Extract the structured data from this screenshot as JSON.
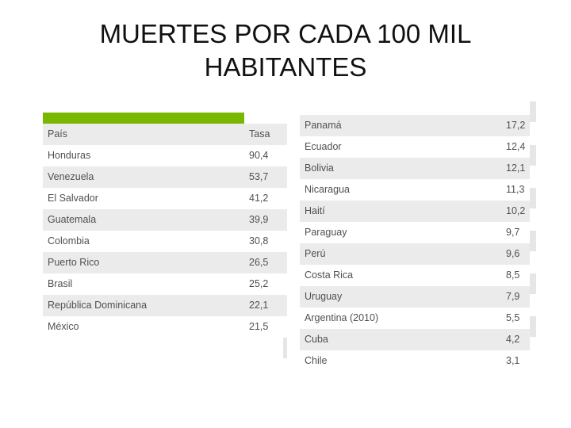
{
  "title": {
    "line1": "MUERTES POR CADA 100 MIL",
    "line2": "HABITANTES"
  },
  "left_table": {
    "header": {
      "country": "País",
      "rate": "Tasa"
    },
    "rows": [
      {
        "country": "Honduras",
        "rate": "90,4"
      },
      {
        "country": "Venezuela",
        "rate": "53,7"
      },
      {
        "country": "El Salvador",
        "rate": "41,2"
      },
      {
        "country": "Guatemala",
        "rate": "39,9"
      },
      {
        "country": "Colombia",
        "rate": "30,8"
      },
      {
        "country": "Puerto Rico",
        "rate": "26,5"
      },
      {
        "country": "Brasil",
        "rate": "25,2"
      },
      {
        "country": "República Dominicana",
        "rate": "22,1"
      },
      {
        "country": "México",
        "rate": "21,5"
      }
    ]
  },
  "right_table": {
    "rows": [
      {
        "country": "Panamá",
        "rate": "17,2"
      },
      {
        "country": "Ecuador",
        "rate": "12,4"
      },
      {
        "country": "Bolivia",
        "rate": "12,1"
      },
      {
        "country": "Nicaragua",
        "rate": "11,3"
      },
      {
        "country": "Haití",
        "rate": "10,2"
      },
      {
        "country": "Paraguay",
        "rate": "9,7"
      },
      {
        "country": "Perú",
        "rate": "9,6"
      },
      {
        "country": "Costa Rica",
        "rate": "8,5"
      },
      {
        "country": "Uruguay",
        "rate": "7,9"
      },
      {
        "country": "Argentina (2010)",
        "rate": "5,5"
      },
      {
        "country": "Cuba",
        "rate": "4,2"
      },
      {
        "country": "Chile",
        "rate": "3,1"
      }
    ]
  },
  "colors": {
    "accent": "#7ab800",
    "row_shade": "#ebebeb",
    "text": "#505050"
  }
}
